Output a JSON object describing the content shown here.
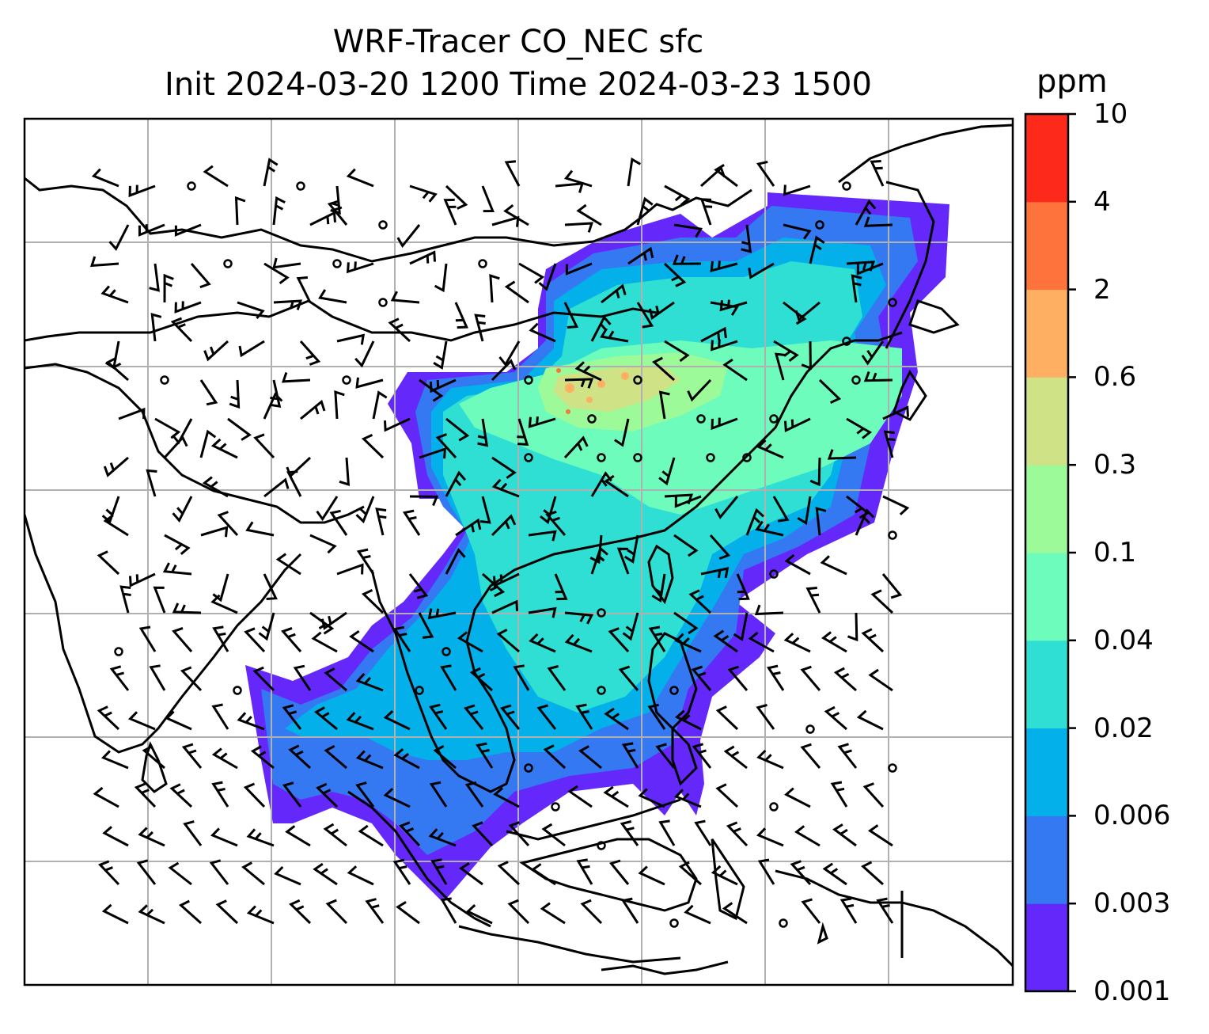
{
  "title_line1": "WRF-Tracer CO_NEC sfc",
  "title_line2": "Init 2024-03-20 1200 Time 2024-03-23 1500",
  "colorbar": {
    "unit": "ppm",
    "ticks": [
      "0.001",
      "0.003",
      "0.006",
      "0.02",
      "0.04",
      "0.1",
      "0.3",
      "0.6",
      "2",
      "4",
      "10"
    ],
    "colors": [
      "#6429fa",
      "#3478f2",
      "#03b0ea",
      "#2fdfd3",
      "#6efcbc",
      "#9cfb98",
      "#cfe285",
      "#feaf62",
      "#fe733b",
      "#fd2a1b"
    ]
  },
  "map": {
    "region": "East and Southeast Asia",
    "field": "CO_NEC surface tracer concentration",
    "overlay": "wind barbs",
    "gridlines": true
  }
}
